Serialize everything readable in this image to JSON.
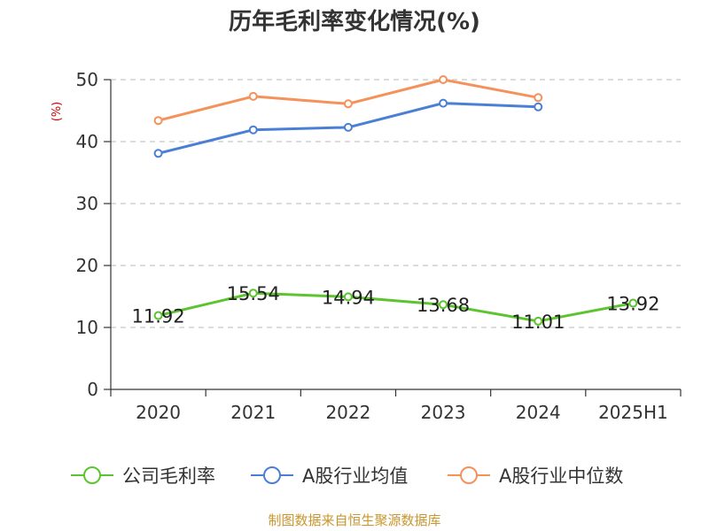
{
  "chart_data": {
    "type": "line",
    "title": "历年毛利率变化情况(%)",
    "ylabel": "(%)",
    "xlabel": "",
    "categories": [
      "2020",
      "2021",
      "2022",
      "2023",
      "2024",
      "2025H1"
    ],
    "ylim": [
      0,
      50
    ],
    "yticks": [
      0,
      10,
      20,
      30,
      40,
      50
    ],
    "grid": true,
    "legend_position": "bottom",
    "series": [
      {
        "name": "公司毛利率",
        "color": "#5cc42e",
        "values": [
          11.92,
          15.54,
          14.94,
          13.68,
          11.01,
          13.92
        ],
        "show_labels": true
      },
      {
        "name": "A股行业均值",
        "color": "#4a7fd6",
        "values": [
          38.1,
          41.9,
          42.3,
          46.2,
          45.6,
          null
        ],
        "show_labels": false
      },
      {
        "name": "A股行业中位数",
        "color": "#f5915a",
        "values": [
          43.4,
          47.3,
          46.1,
          50.0,
          47.1,
          null
        ],
        "show_labels": false
      }
    ]
  },
  "source_text": "制图数据来自恒生聚源数据库"
}
